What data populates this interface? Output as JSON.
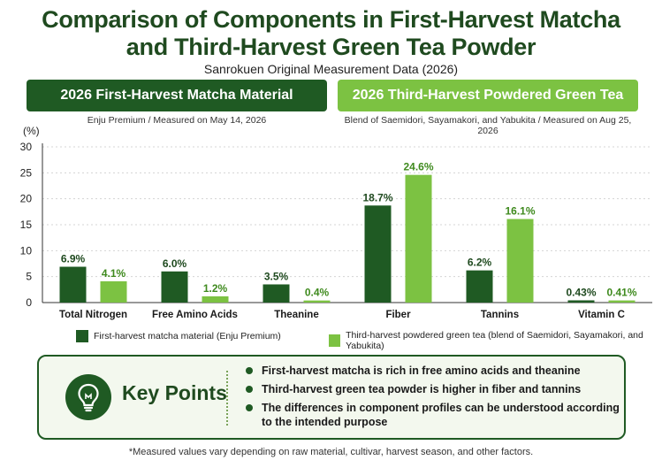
{
  "title_line1": "Comparison of Components in First-Harvest Matcha",
  "title_line2": "and Third-Harvest Green Tea Powder",
  "subtitle": "Sanrokuen Original Measurement Data (2026)",
  "header_left": {
    "label": "2026 First-Harvest Matcha Material",
    "note": "Enju Premium / Measured on May 14, 2026",
    "color": "#1f5a23"
  },
  "header_right": {
    "label": "2026 Third-Harvest Powdered Green Tea",
    "note": "Blend of Saemidori, Sayamakori, and Yabukita / Measured on Aug 25, 2026",
    "color": "#7cc242"
  },
  "chart_data": {
    "type": "bar",
    "ylabel": "(%)",
    "ylim": [
      0,
      30
    ],
    "yticks": [
      0,
      5,
      10,
      15,
      20,
      25,
      30
    ],
    "grid": true,
    "categories": [
      "Total Nitrogen",
      "Free Amino Acids",
      "Theanine",
      "Fiber",
      "Tannins",
      "Vitamin C"
    ],
    "series": [
      {
        "name": "First-harvest matcha material (Enju Premium)",
        "color": "#1f5a23",
        "values": [
          6.9,
          6.0,
          3.5,
          18.7,
          6.2,
          0.43
        ],
        "labels": [
          "6.9%",
          "6.0%",
          "3.5%",
          "18.7%",
          "6.2%",
          "0.43%"
        ]
      },
      {
        "name": "Third-harvest powdered green tea (blend of Saemidori, Sayamakori, and Yabukita)",
        "color": "#7cc242",
        "values": [
          4.1,
          1.2,
          0.4,
          24.6,
          16.1,
          0.41
        ],
        "labels": [
          "4.1%",
          "1.2%",
          "0.4%",
          "24.6%",
          "16.1%",
          "0.41%"
        ]
      }
    ],
    "legend_position": "bottom"
  },
  "key_points": {
    "title": "Key Points",
    "icon": "lightbulb-icon",
    "items": [
      "First-harvest matcha is rich in free amino acids and theanine",
      "Third-harvest green tea powder is higher in fiber and tannins",
      "The differences in component profiles can be understood according to the intended purpose"
    ]
  },
  "footnote": "*Measured values vary depending on raw material, cultivar, harvest season, and other factors."
}
